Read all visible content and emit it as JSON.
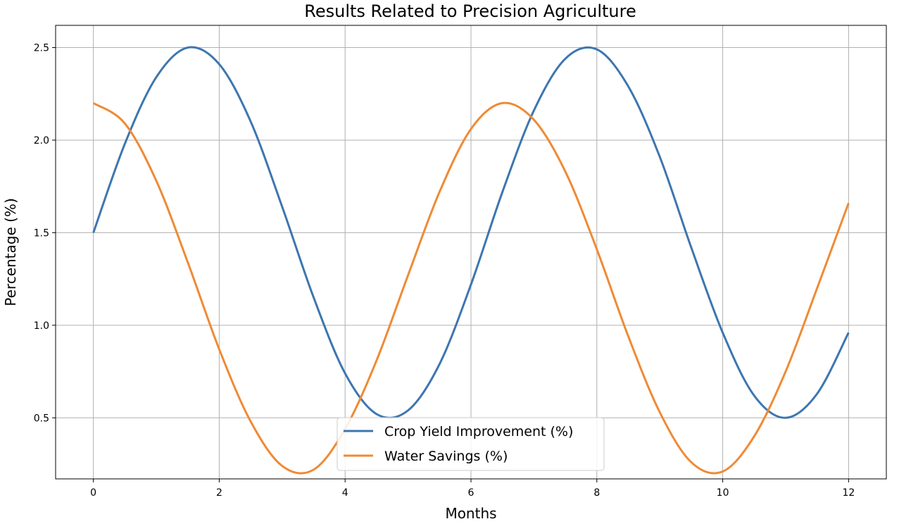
{
  "chart_data": {
    "type": "line",
    "title": "Results Related to Precision Agriculture",
    "xlabel": "Months",
    "ylabel": "Percentage (%)",
    "xlim": [
      -0.6,
      12.6
    ],
    "ylim": [
      0.17,
      2.62
    ],
    "xticks": [
      0,
      2,
      4,
      6,
      8,
      10,
      12
    ],
    "xtick_labels": [
      "0",
      "2",
      "4",
      "6",
      "8",
      "10",
      "12"
    ],
    "yticks": [
      0.5,
      1.0,
      1.5,
      2.0,
      2.5
    ],
    "ytick_labels": [
      "0.5",
      "1.0",
      "1.5",
      "2.0",
      "2.5"
    ],
    "grid": true,
    "legend_position": "bottom-center",
    "series": [
      {
        "name": "Crop Yield Improvement (%)",
        "color": "#3d76af",
        "x": [
          0,
          0.5,
          1,
          1.5,
          2,
          2.5,
          3,
          3.5,
          4,
          4.5,
          5,
          5.5,
          6,
          6.5,
          7,
          7.5,
          8,
          8.5,
          9,
          9.5,
          10,
          10.5,
          11,
          11.5,
          12
        ],
        "values": [
          1.5,
          1.98,
          2.34,
          2.5,
          2.41,
          2.1,
          1.64,
          1.15,
          0.74,
          0.52,
          0.54,
          0.79,
          1.22,
          1.72,
          2.16,
          2.44,
          2.49,
          2.29,
          1.91,
          1.42,
          0.96,
          0.62,
          0.5,
          0.63,
          0.96
        ]
      },
      {
        "name": "Water Savings (%)",
        "color": "#ef8a35",
        "x": [
          0,
          0.5,
          1,
          1.5,
          2,
          2.5,
          3,
          3.5,
          4,
          4.5,
          5,
          5.5,
          6,
          6.5,
          7,
          7.5,
          8,
          8.5,
          9,
          9.5,
          10,
          10.5,
          11,
          11.5,
          12
        ],
        "values": [
          2.2,
          2.09,
          1.78,
          1.34,
          0.87,
          0.48,
          0.24,
          0.22,
          0.44,
          0.81,
          1.27,
          1.72,
          2.06,
          2.2,
          2.11,
          1.83,
          1.41,
          0.94,
          0.53,
          0.26,
          0.21,
          0.4,
          0.75,
          1.2,
          1.66
        ]
      }
    ]
  }
}
